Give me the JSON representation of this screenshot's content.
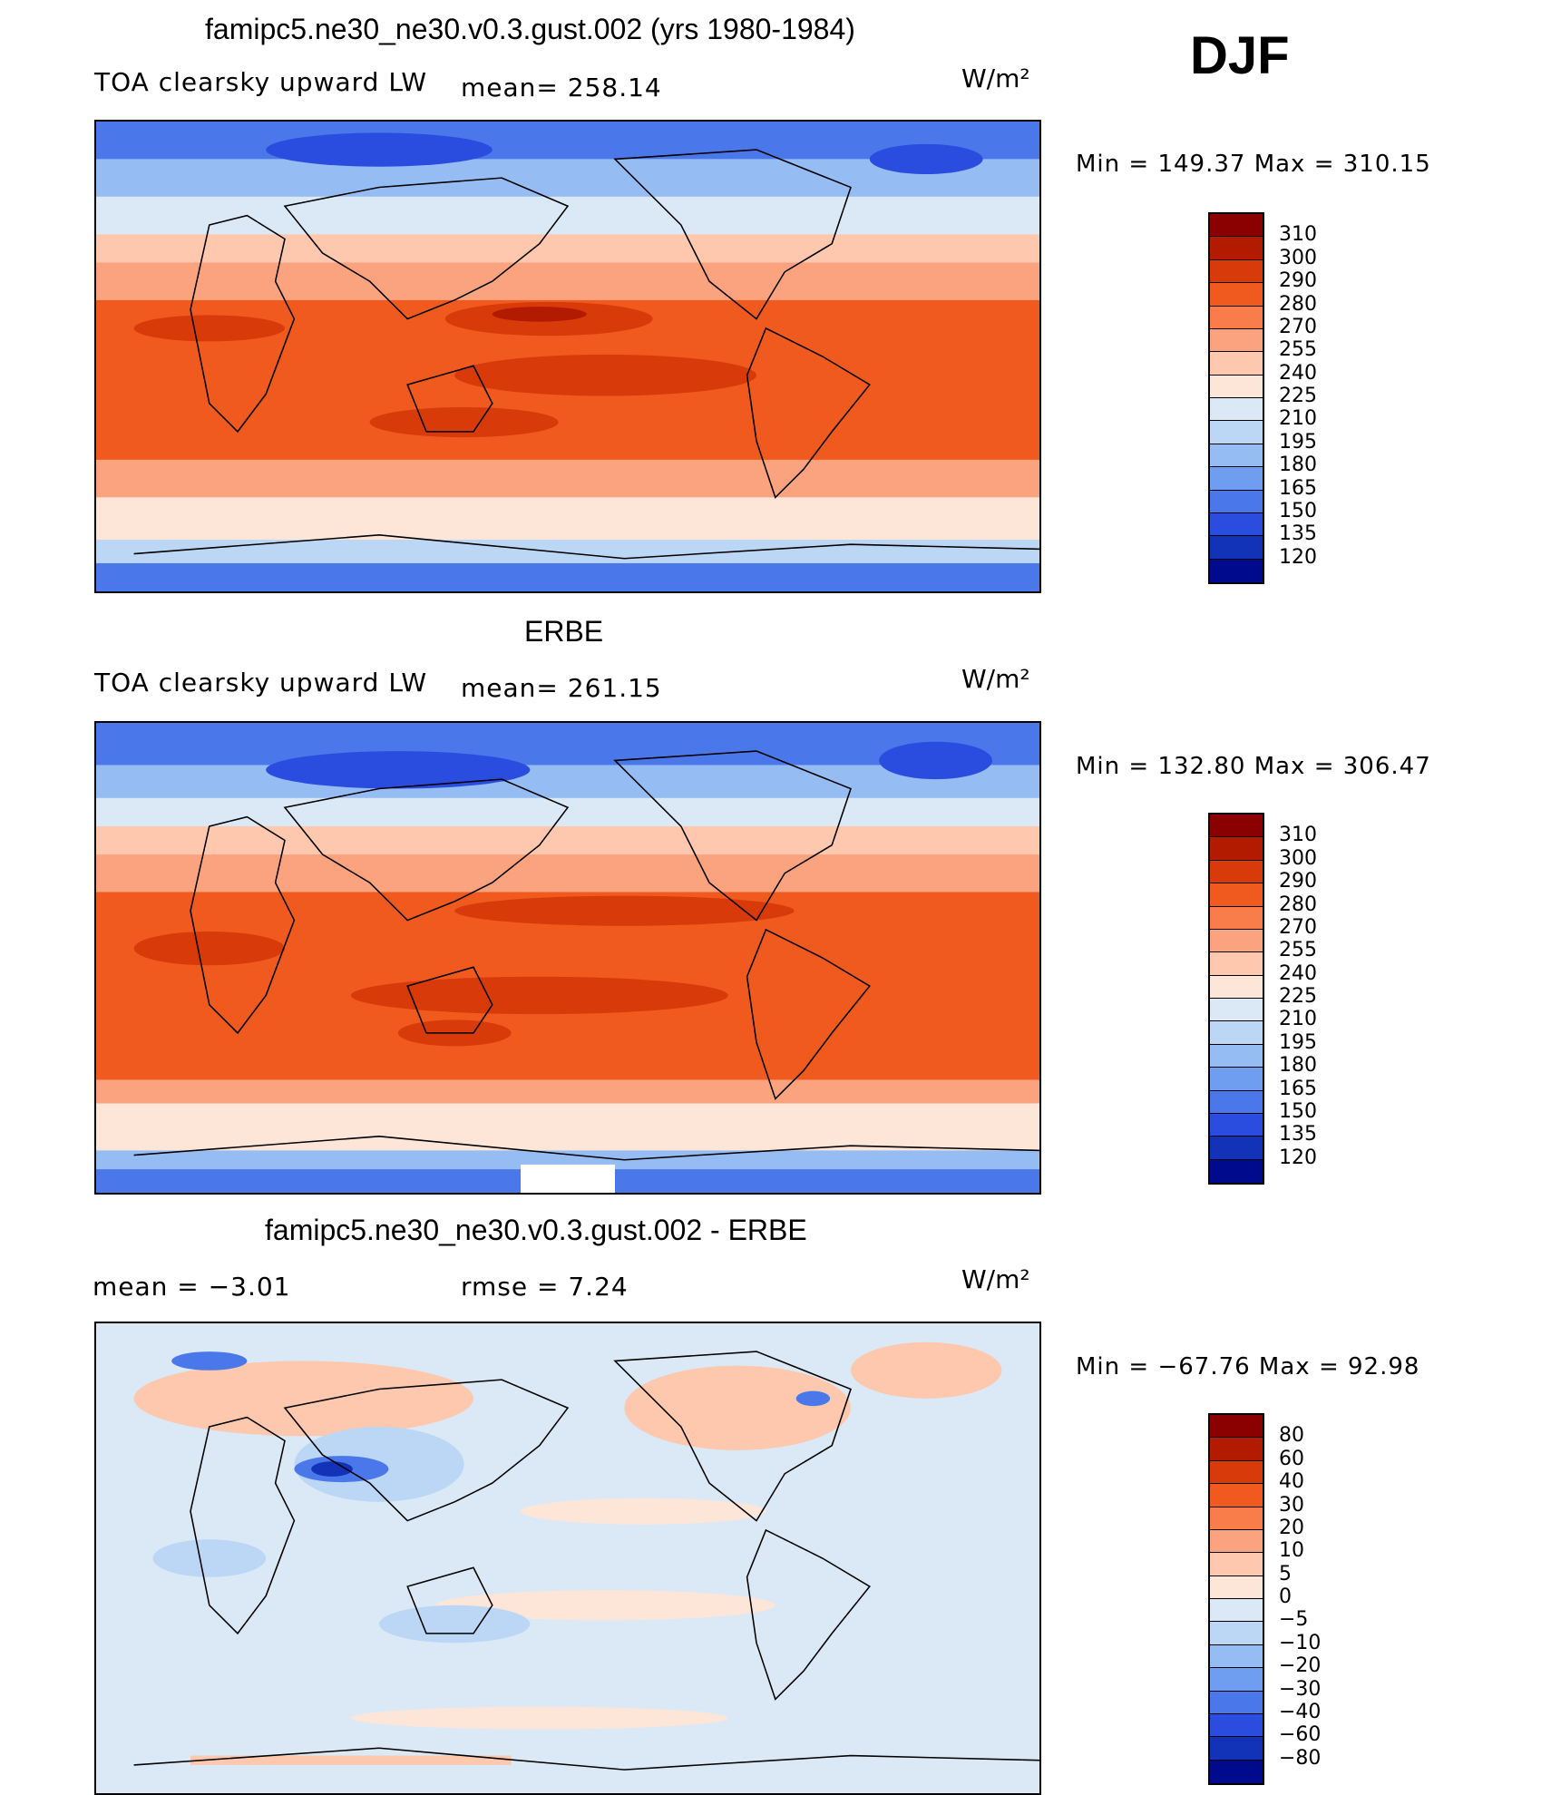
{
  "season": "DJF",
  "panels": [
    {
      "title": "famipc5.ne30_ne30.v0.3.gust.002 (yrs 1980-1984)",
      "left_label": "TOA clearsky upward LW",
      "stat_label": "mean= 258.14",
      "units": "W/m²",
      "minmax": "Min  =  149.37  Max  =  310.15",
      "colorbar_labels": [
        "310",
        "300",
        "290",
        "280",
        "270",
        "255",
        "240",
        "225",
        "210",
        "195",
        "180",
        "165",
        "150",
        "135",
        "120"
      ],
      "colorbar_colors": [
        "#8b0000",
        "#b31b00",
        "#d93a0a",
        "#f05a1e",
        "#f87d4a",
        "#fba37e",
        "#fdc8ad",
        "#fde6d8",
        "#dbe9f7",
        "#bcd6f5",
        "#96bcf4",
        "#6f9df0",
        "#4a78ea",
        "#2a4de0",
        "#1233b8",
        "#000a8c"
      ]
    },
    {
      "title": "ERBE",
      "left_label": "TOA clearsky upward LW",
      "stat_label": "mean= 261.15",
      "units": "W/m²",
      "minmax": "Min  =  132.80  Max  =  306.47",
      "colorbar_labels": [
        "310",
        "300",
        "290",
        "280",
        "270",
        "255",
        "240",
        "225",
        "210",
        "195",
        "180",
        "165",
        "150",
        "135",
        "120"
      ],
      "colorbar_colors": [
        "#8b0000",
        "#b31b00",
        "#d93a0a",
        "#f05a1e",
        "#f87d4a",
        "#fba37e",
        "#fdc8ad",
        "#fde6d8",
        "#dbe9f7",
        "#bcd6f5",
        "#96bcf4",
        "#6f9df0",
        "#4a78ea",
        "#2a4de0",
        "#1233b8",
        "#000a8c"
      ]
    },
    {
      "title": "famipc5.ne30_ne30.v0.3.gust.002 - ERBE",
      "left_label": "mean  =    −3.01",
      "stat_label": "rmse  =     7.24",
      "units": "W/m²",
      "minmax": "Min  =  −67.76  Max  =    92.98",
      "colorbar_labels": [
        "80",
        "60",
        "40",
        "30",
        "20",
        "10",
        "5",
        "0",
        "−5",
        "−10",
        "−20",
        "−30",
        "−40",
        "−60",
        "−80"
      ],
      "colorbar_colors": [
        "#8b0000",
        "#b31b00",
        "#d93a0a",
        "#f05a1e",
        "#f87d4a",
        "#fba37e",
        "#fdc8ad",
        "#fde6d8",
        "#dbe9f7",
        "#bcd6f5",
        "#96bcf4",
        "#6f9df0",
        "#4a78ea",
        "#2a4de0",
        "#1233b8",
        "#000a8c"
      ]
    }
  ]
}
